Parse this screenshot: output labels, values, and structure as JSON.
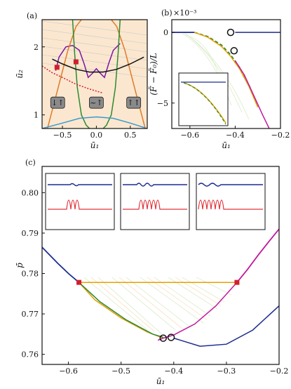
{
  "chart_data": [
    {
      "panel": "(a)",
      "type": "line",
      "xlabel": "ū₁",
      "ylabel": "ū₂",
      "xlim": [
        -0.8,
        0.75
      ],
      "ylim": [
        0.8,
        2.4
      ],
      "xticks": [
        "−0.5",
        "0.0",
        "0.5"
      ],
      "yticks": [
        "1",
        "2"
      ],
      "region_labels": [
        "↓↑",
        "~↑",
        "↑↑"
      ],
      "series": [
        {
          "color": "#7b16a8",
          "x": [
            -0.6,
            -0.55,
            -0.45,
            -0.35,
            -0.25,
            -0.18,
            -0.12,
            -0.05,
            0.0,
            0.05,
            0.12,
            0.18,
            0.25,
            0.35
          ],
          "y": [
            1.65,
            1.85,
            2.0,
            2.02,
            1.95,
            1.75,
            1.55,
            1.62,
            1.68,
            1.62,
            1.55,
            1.75,
            1.95,
            2.05
          ]
        },
        {
          "color": "#e07b2a",
          "x": [
            -0.72,
            -0.55,
            -0.42,
            -0.3,
            -0.22
          ],
          "y": [
            0.8,
            1.45,
            1.95,
            2.3,
            2.4
          ]
        },
        {
          "color": "#e07b2a",
          "x": [
            0.22,
            0.3,
            0.42,
            0.55,
            0.72
          ],
          "y": [
            2.4,
            2.3,
            1.95,
            1.45,
            0.8
          ]
        },
        {
          "color": "#2d8a32",
          "x": [
            -0.35,
            -0.32,
            -0.28,
            -0.22,
            -0.15,
            -0.1
          ],
          "y": [
            2.4,
            1.9,
            1.4,
            1.0,
            0.85,
            0.8
          ]
        },
        {
          "color": "#2d8a32",
          "x": [
            0.1,
            0.15,
            0.22,
            0.28,
            0.32,
            0.35
          ],
          "y": [
            0.8,
            0.85,
            1.0,
            1.4,
            1.9,
            2.4
          ]
        },
        {
          "color": "#111111",
          "x": [
            -0.65,
            -0.5,
            -0.3,
            -0.1,
            0.1,
            0.3,
            0.5,
            0.7
          ],
          "y": [
            1.82,
            1.75,
            1.67,
            1.63,
            1.63,
            1.67,
            1.75,
            1.85
          ]
        },
        {
          "color": "#d11f2f",
          "x": [
            -0.8,
            -0.65,
            -0.5,
            -0.3,
            -0.1,
            0.1
          ],
          "y": [
            1.72,
            1.62,
            1.55,
            1.45,
            1.38,
            1.32
          ]
        },
        {
          "color": "#3a9ad1",
          "x": [
            -0.8,
            -0.5,
            -0.25,
            0.0,
            0.25,
            0.5,
            0.75
          ],
          "y": [
            0.8,
            0.88,
            0.95,
            0.97,
            0.95,
            0.88,
            0.8
          ]
        }
      ],
      "points": [
        {
          "x": -0.58,
          "y": 1.7,
          "color": "#d11f2f"
        },
        {
          "x": -0.3,
          "y": 1.78,
          "color": "#d11f2f"
        }
      ]
    },
    {
      "panel": "(b)",
      "type": "line",
      "xlabel": "ū₁",
      "ylabel": "(F̃ − F̃₀)/L",
      "scale_label": "×10⁻³",
      "xlim": [
        -0.68,
        -0.2
      ],
      "ylim": [
        -6.8,
        0.9
      ],
      "xticks": [
        "−0.6",
        "−0.4",
        "−0.2"
      ],
      "yticks": [
        "0",
        "−5"
      ],
      "series": [
        {
          "color": "#1c2c8f",
          "x": [
            -0.68,
            -0.58
          ],
          "y": [
            0.0,
            0.0
          ]
        },
        {
          "color": "#2d8a32",
          "x": [
            -0.58,
            -0.52,
            -0.46,
            -0.42,
            -0.38,
            -0.34,
            -0.3
          ],
          "y": [
            0.0,
            -0.3,
            -0.9,
            -1.6,
            -2.5,
            -3.7,
            -5.2
          ]
        },
        {
          "color": "#e6a100",
          "x": [
            -0.58,
            -0.52,
            -0.46,
            -0.42,
            -0.38,
            -0.34,
            -0.3
          ],
          "y": [
            0.0,
            -0.35,
            -1.0,
            -1.7,
            -2.6,
            -3.8,
            -5.3
          ]
        },
        {
          "color": "#c1199b",
          "x": [
            -0.4,
            -0.36,
            -0.32,
            -0.28,
            -0.25
          ],
          "y": [
            -2.0,
            -3.0,
            -4.4,
            -5.8,
            -6.8
          ]
        },
        {
          "color": "#1c2c8f",
          "x": [
            -0.4,
            -0.3,
            -0.2
          ],
          "y": [
            0.0,
            0.0,
            0.0
          ]
        }
      ],
      "markers": [
        {
          "x": -0.42,
          "y": 0.0
        },
        {
          "x": -0.405,
          "y": -1.3
        }
      ]
    },
    {
      "panel": "(c)",
      "type": "line",
      "xlabel": "ū₁",
      "ylabel": "p̄",
      "xlim": [
        -0.65,
        -0.2
      ],
      "ylim": [
        0.7575,
        0.8065
      ],
      "xticks": [
        "−0.6",
        "−0.5",
        "−0.4",
        "−0.3",
        "−0.2"
      ],
      "yticks": [
        "0.76",
        "0.77",
        "0.78",
        "0.79",
        "0.80"
      ],
      "series": [
        {
          "color": "#1c2c8f",
          "x": [
            -0.65,
            -0.62,
            -0.6,
            -0.58
          ],
          "y": [
            0.7865,
            0.7825,
            0.78,
            0.7778
          ]
        },
        {
          "color": "#c1199b",
          "x": [
            -0.28,
            -0.26,
            -0.24,
            -0.22,
            -0.2
          ],
          "y": [
            0.7778,
            0.781,
            0.7845,
            0.7878,
            0.791
          ]
        },
        {
          "color": "#2d8a32",
          "x": [
            -0.58,
            -0.28
          ],
          "y": [
            0.7778,
            0.7778
          ]
        },
        {
          "color": "#e6a100",
          "x": [
            -0.58,
            -0.28
          ],
          "y": [
            0.7778,
            0.7778
          ]
        },
        {
          "color": "#e6a100",
          "x": [
            -0.58,
            -0.55,
            -0.5,
            -0.45,
            -0.42
          ],
          "y": [
            0.7778,
            0.7735,
            0.769,
            0.7655,
            0.764
          ]
        },
        {
          "color": "#2d8a32",
          "x": [
            -0.58,
            -0.54,
            -0.49,
            -0.44,
            -0.42
          ],
          "y": [
            0.7778,
            0.773,
            0.7685,
            0.765,
            0.7642
          ]
        },
        {
          "color": "#c1199b",
          "x": [
            -0.28,
            -0.32,
            -0.36,
            -0.4,
            -0.42,
            -0.43
          ],
          "y": [
            0.7778,
            0.772,
            0.7675,
            0.7648,
            0.764,
            0.7635
          ]
        },
        {
          "color": "#1c2c8f",
          "x": [
            -0.4,
            -0.35,
            -0.3,
            -0.25,
            -0.2
          ],
          "y": [
            0.764,
            0.762,
            0.7625,
            0.766,
            0.772
          ]
        }
      ],
      "points": [
        {
          "x": -0.58,
          "y": 0.7778,
          "color": "#d11f2f"
        },
        {
          "x": -0.28,
          "y": 0.7778,
          "color": "#d11f2f"
        }
      ],
      "markers": [
        {
          "x": -0.42,
          "y": 0.764
        },
        {
          "x": -0.405,
          "y": 0.7642
        }
      ]
    }
  ]
}
